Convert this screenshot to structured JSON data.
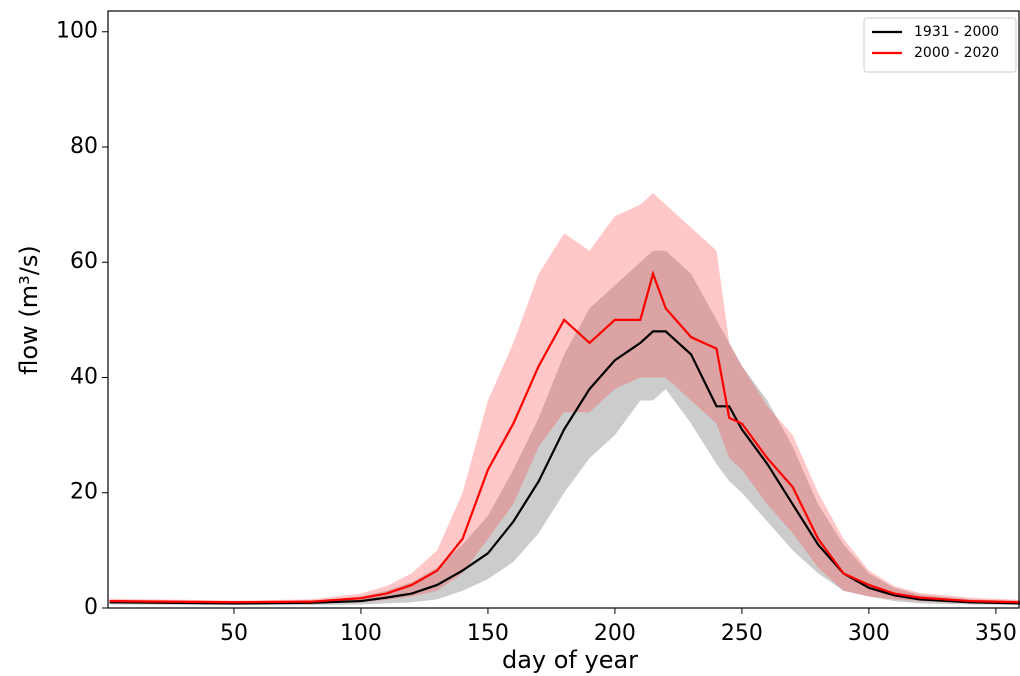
{
  "chart_data": {
    "type": "line",
    "xlabel": "day of year",
    "ylabel": "flow (m³/s)",
    "x": [
      1,
      50,
      80,
      100,
      110,
      120,
      130,
      140,
      150,
      160,
      170,
      180,
      190,
      200,
      210,
      215,
      220,
      230,
      240,
      245,
      250,
      260,
      270,
      280,
      290,
      300,
      310,
      320,
      340,
      360
    ],
    "series": [
      {
        "name": "1931 - 2000",
        "color": "#000000",
        "values": [
          1,
          0.8,
          0.9,
          1.2,
          1.8,
          2.5,
          4,
          6.5,
          9.5,
          15,
          22,
          31,
          38,
          43,
          46,
          48,
          48,
          44,
          35,
          35,
          31,
          25,
          18,
          11,
          6,
          3.5,
          2.2,
          1.5,
          1,
          0.8
        ]
      },
      {
        "name": "2000 - 2020",
        "color": "#ff0000",
        "values": [
          1.2,
          1,
          1.1,
          1.7,
          2.5,
          4,
          6.5,
          12,
          24,
          32,
          42,
          50,
          46,
          50,
          50,
          58,
          52,
          47,
          45,
          33,
          32,
          26,
          21,
          12,
          6,
          4,
          2.5,
          1.8,
          1.2,
          1
        ]
      }
    ],
    "bands": [
      {
        "color": "#555555",
        "lower": [
          0.6,
          0.5,
          0.5,
          0.6,
          0.8,
          1,
          1.5,
          3,
          5,
          8,
          13,
          20,
          26,
          30,
          36,
          36,
          38,
          32,
          25,
          22,
          20,
          15,
          10,
          6,
          3,
          2,
          1.2,
          0.8,
          0.6,
          0.5
        ],
        "upper": [
          1.2,
          1,
          1.2,
          2,
          3,
          4.5,
          7,
          11,
          16,
          24,
          33,
          44,
          52,
          56,
          60,
          62,
          62,
          58,
          50,
          46,
          42,
          36,
          28,
          18,
          11,
          6,
          3.5,
          2.3,
          1.5,
          1.2
        ]
      },
      {
        "color": "#ff4444",
        "lower": [
          0.8,
          0.7,
          0.7,
          1,
          1.4,
          2,
          3,
          6,
          12,
          18,
          28,
          34,
          34,
          38,
          40,
          40,
          40,
          36,
          32,
          26,
          24,
          18,
          13,
          7,
          3,
          2,
          1.5,
          1.2,
          0.8,
          0.7
        ],
        "upper": [
          1.6,
          1.3,
          1.5,
          2.5,
          3.8,
          6,
          10,
          20,
          36,
          46,
          58,
          65,
          62,
          68,
          70,
          72,
          70,
          66,
          62,
          46,
          42,
          35,
          30,
          20,
          12,
          6.5,
          3.8,
          2.6,
          1.8,
          1.4
        ]
      }
    ],
    "xlim": [
      0.4,
      359.5
    ],
    "ylim": [
      0,
      103.6
    ],
    "xticks": [
      50,
      100,
      150,
      200,
      250,
      300,
      350
    ],
    "yticks": [
      0,
      20,
      40,
      60,
      80,
      100
    ],
    "grid": false,
    "legend": "upper right"
  }
}
